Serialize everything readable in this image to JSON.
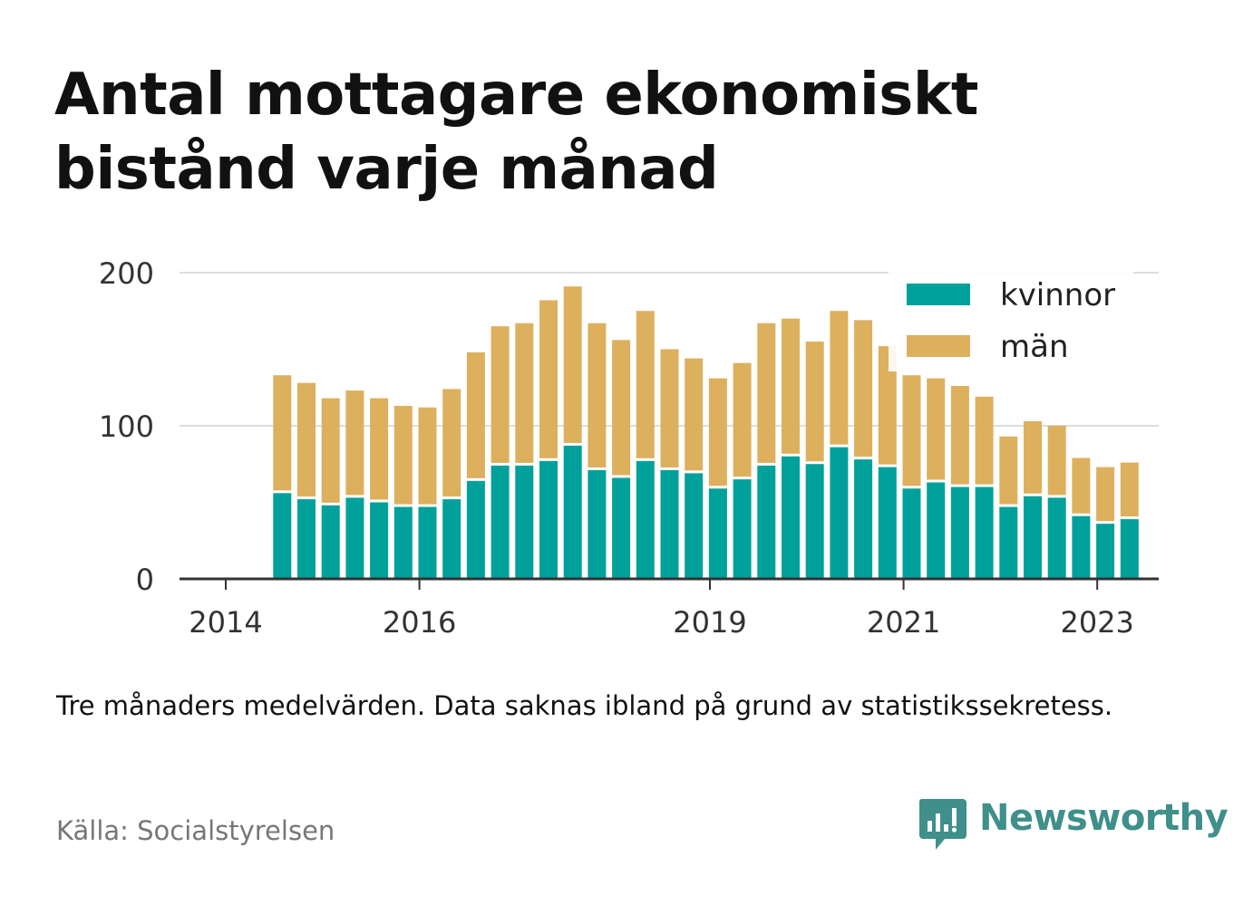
{
  "title": "Antal mottagare ekonomiskt bistånd varje månad",
  "note": "Tre månaders medelvärden. Data saknas ibland på grund av statistikssekretess.",
  "source": "Källa: Socialstyrelsen",
  "brand": "Newsworthy",
  "colors": {
    "kvinnor": "#00a19a",
    "man": "#ddb05e",
    "axis": "#333333",
    "grid": "#dddddd",
    "brand": "#3f8f8a"
  },
  "chart_data": {
    "type": "bar",
    "stacked": true,
    "x": [
      "2014-07",
      "2014-10",
      "2015-01",
      "2015-04",
      "2015-07",
      "2015-10",
      "2016-01",
      "2016-04",
      "2016-07",
      "2016-10",
      "2017-01",
      "2017-04",
      "2017-07",
      "2017-10",
      "2018-01",
      "2018-04",
      "2018-07",
      "2018-10",
      "2019-01",
      "2019-04",
      "2019-07",
      "2019-10",
      "2020-01",
      "2020-04",
      "2020-07",
      "2020-10",
      "2021-01",
      "2021-04",
      "2021-07",
      "2021-10",
      "2022-01",
      "2022-04",
      "2022-07",
      "2022-10",
      "2023-01",
      "2023-04"
    ],
    "series": [
      {
        "name": "kvinnor",
        "values": [
          56,
          52,
          48,
          53,
          50,
          47,
          47,
          52,
          64,
          74,
          74,
          77,
          87,
          71,
          66,
          77,
          71,
          69,
          59,
          65,
          74,
          80,
          75,
          86,
          78,
          73,
          59,
          63,
          60,
          60,
          47,
          54,
          53,
          41,
          36,
          39
        ]
      },
      {
        "name": "män",
        "values": [
          77,
          76,
          70,
          70,
          68,
          66,
          65,
          72,
          84,
          91,
          93,
          105,
          104,
          96,
          90,
          98,
          79,
          75,
          72,
          76,
          93,
          90,
          80,
          89,
          91,
          79,
          74,
          68,
          66,
          59,
          46,
          49,
          47,
          38,
          37,
          37
        ]
      }
    ],
    "xticks": [
      "2014",
      "2016",
      "2019",
      "2021",
      "2023"
    ],
    "yticks": [
      0,
      100,
      200
    ],
    "ylim": [
      0,
      200
    ],
    "grid": true,
    "legend": "top-right"
  }
}
